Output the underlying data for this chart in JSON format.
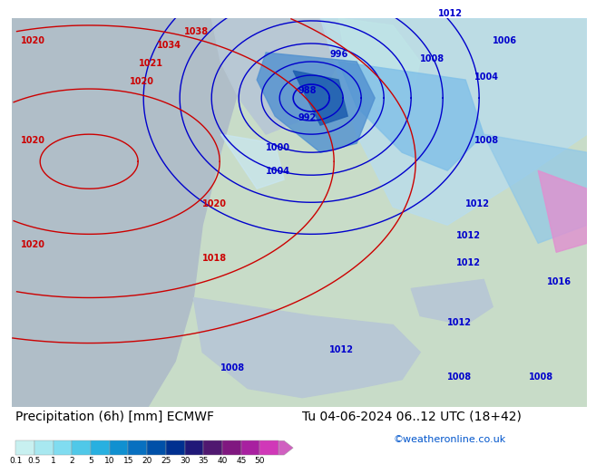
{
  "title_left": "Precipitation (6h) [mm] ECMWF",
  "title_right": "Tu 04-06-2024 06..12 UTC (18+42)",
  "credit": "©weatheronline.co.uk",
  "colorbar_labels": [
    "0.1",
    "0.5",
    "1",
    "2",
    "5",
    "10",
    "15",
    "20",
    "25",
    "30",
    "35",
    "40",
    "45",
    "50"
  ],
  "colorbar_colors": [
    "#c8f0f0",
    "#a8e8f0",
    "#80dcf0",
    "#50c8e8",
    "#28b0e0",
    "#1090d0",
    "#0870c0",
    "#0050a8",
    "#003090",
    "#201878",
    "#501870",
    "#801880",
    "#a820a0",
    "#d038b8",
    "#e060c8"
  ],
  "arrow_color": "#d060c0",
  "bg_color": "#ffffff",
  "text_color": "#000000",
  "credit_color": "#0055cc",
  "map_ocean_color": "#b0c4d4",
  "map_atlantic_color": "#b8ccd8",
  "map_land_color": "#c8dcc8",
  "map_precip_light_color": "#c0e8f0",
  "map_precip_med_color": "#80c8e8",
  "map_precip_heavy_color": "#4090d0",
  "pressure_blue_color": "#0000cc",
  "pressure_red_color": "#cc0000",
  "title_fontsize": 10,
  "label_fontsize": 7,
  "credit_fontsize": 8
}
